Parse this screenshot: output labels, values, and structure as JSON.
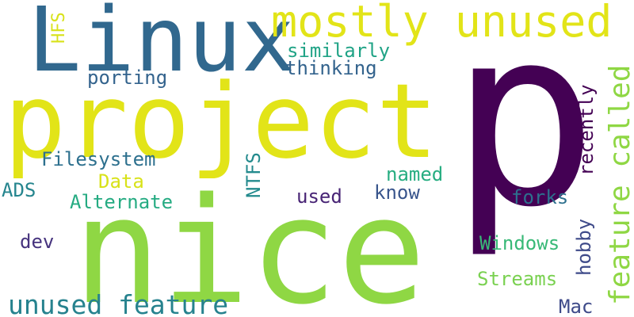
{
  "words": [
    {
      "text": "p",
      "color": "#440154"
    },
    {
      "text": "nice",
      "color": "#8fd744"
    },
    {
      "text": "project",
      "color": "#e2e418"
    },
    {
      "text": "Linux",
      "color": "#31688e"
    },
    {
      "text": "mostly unused",
      "color": "#e2e418"
    },
    {
      "text": "unused feature",
      "color": "#26828e"
    },
    {
      "text": "feature called",
      "color": "#8fd744"
    },
    {
      "text": "similarly",
      "color": "#20a386"
    },
    {
      "text": "thinking",
      "color": "#33638d"
    },
    {
      "text": "porting",
      "color": "#33638d"
    },
    {
      "text": "HFS",
      "color": "#d8e219"
    },
    {
      "text": "Filesystem",
      "color": "#2d708e"
    },
    {
      "text": "Data",
      "color": "#d8e219"
    },
    {
      "text": "Alternate",
      "color": "#25ab82"
    },
    {
      "text": "ADS",
      "color": "#25858e"
    },
    {
      "text": "NTFS",
      "color": "#238a8d"
    },
    {
      "text": "used",
      "color": "#482475"
    },
    {
      "text": "know",
      "color": "#39558c"
    },
    {
      "text": "named",
      "color": "#27ad81"
    },
    {
      "text": "recently",
      "color": "#440154"
    },
    {
      "text": "forks",
      "color": "#2d708e"
    },
    {
      "text": "dev",
      "color": "#46337e"
    },
    {
      "text": "Windows",
      "color": "#38b977"
    },
    {
      "text": "hobby",
      "color": "#3e4a89"
    },
    {
      "text": "Streams",
      "color": "#7ad151"
    },
    {
      "text": "Mac",
      "color": "#3e4a89"
    }
  ]
}
